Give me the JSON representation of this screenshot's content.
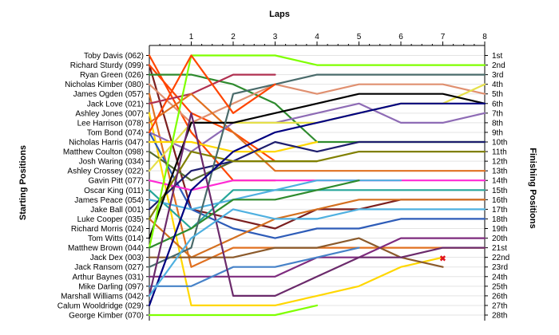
{
  "chart_data": {
    "type": "line",
    "title": "Laps",
    "ylabel_left": "Starting Positions",
    "ylabel_right": "Finishing Positions",
    "x": [
      0,
      1,
      2,
      3,
      4,
      5,
      6,
      7,
      8
    ],
    "x_tick_labels": [
      "1",
      "2",
      "3",
      "4",
      "5",
      "6",
      "7",
      "8"
    ],
    "y_range": [
      1,
      28
    ],
    "grid": true,
    "retired_marker": {
      "label": "✖",
      "lap": 7,
      "position": 22
    },
    "starting_labels": [
      "Toby Davis (062)",
      "Richard Sturdy (099)",
      "Ryan Green (026)",
      "Nicholas Kimber (080)",
      "James Ogden (057)",
      "Jack Love (021)",
      "Ashley Jones (007)",
      "Lee Harrison (078)",
      "Tom Bond (074)",
      "Nicholas Harris (047)",
      "Matthew Coulton (098)",
      "Josh Waring (034)",
      "Ashley Crossey (022)",
      "Gavin Pitt (077)",
      "Oscar King (011)",
      "James Peace (054)",
      "Jake Ball (001)",
      "Luke Cooper (035)",
      "Richard Morris (024)",
      "Tom Witts (014)",
      "Matthew Brown (044)",
      "Jack Dex (003)",
      "Jack Ransom (027)",
      "Arthur Baynes (031)",
      "Mike Darling (097)",
      "Marshall Williams (042)",
      "Calum Wooldridge (029)",
      "George Kimber (070)"
    ],
    "finishing_labels": [
      {
        "label": "1st",
        "position": 1
      },
      {
        "label": "2nd",
        "position": 2
      },
      {
        "label": "3rd",
        "position": 3
      },
      {
        "label": "4th",
        "position": 4
      },
      {
        "label": "5th",
        "position": 5
      },
      {
        "label": "6th",
        "position": 6
      },
      {
        "label": "7th",
        "position": 7
      },
      {
        "label": "8th",
        "position": 8
      },
      {
        "label": "9th",
        "position": 9
      },
      {
        "label": "10th",
        "position": 10
      },
      {
        "label": "11th",
        "position": 11
      },
      {
        "label": "12th",
        "position": 12
      },
      {
        "label": "13th",
        "position": 13
      },
      {
        "label": "14th",
        "position": 14
      },
      {
        "label": "15th",
        "position": 15
      },
      {
        "label": "16th",
        "position": 16
      },
      {
        "label": "17th",
        "position": 17
      },
      {
        "label": "18th",
        "position": 18
      },
      {
        "label": "19th",
        "position": 19
      },
      {
        "label": "20th",
        "position": 20
      },
      {
        "label": "21st",
        "position": 21
      },
      {
        "label": "22nd",
        "position": 22
      },
      {
        "label": "23rd",
        "position": 23
      },
      {
        "label": "24th",
        "position": 24
      },
      {
        "label": "25th",
        "position": 25
      },
      {
        "label": "26th",
        "position": 26
      },
      {
        "label": "27th",
        "position": 27
      },
      {
        "label": "28th",
        "position": 28
      }
    ],
    "series": [
      {
        "color": "#ff4500",
        "positions": [
          1,
          9,
          14,
          14
        ]
      },
      {
        "color": "#7b1f1f",
        "positions": [
          2,
          17,
          18,
          19,
          17,
          17,
          16,
          16,
          16
        ]
      },
      {
        "color": "#ff4500",
        "positions": [
          2,
          7,
          9,
          12
        ]
      },
      {
        "color": "#2e8b2e",
        "positions": [
          3,
          3,
          4,
          6,
          10,
          10,
          10,
          10,
          10
        ]
      },
      {
        "color": "#e09070",
        "positions": [
          4,
          8,
          6,
          4,
          5,
          4,
          4,
          4,
          5
        ]
      },
      {
        "color": "#e07020",
        "positions": [
          5,
          23,
          21,
          21,
          21,
          21,
          21,
          21,
          21
        ]
      },
      {
        "color": "#b03050",
        "positions": [
          6,
          5,
          3,
          3
        ]
      },
      {
        "color": "#ffd700",
        "positions": [
          7,
          27,
          27,
          27,
          26,
          25,
          23,
          22
        ]
      },
      {
        "color": "#e07020",
        "positions": [
          8,
          5,
          9,
          13,
          13,
          13,
          13,
          13,
          13
        ]
      },
      {
        "color": "#8e6bb5",
        "positions": [
          9,
          11,
          8,
          8,
          7,
          6,
          8,
          8,
          7
        ]
      },
      {
        "color": "#2e5cb8",
        "positions": [
          9,
          17,
          19,
          20,
          19,
          19,
          18,
          18,
          18
        ]
      },
      {
        "color": "#ffd700",
        "positions": [
          10,
          10,
          11,
          11,
          10
        ]
      },
      {
        "color": "#556b2f",
        "positions": [
          11,
          14,
          12,
          12,
          12
        ]
      },
      {
        "color": "#e5e04a",
        "positions": [
          13,
          8,
          8,
          8,
          8,
          7,
          6,
          6,
          4
        ]
      },
      {
        "color": "#ff2ad4",
        "positions": [
          14,
          15,
          14,
          14,
          14,
          14,
          14,
          14,
          14
        ]
      },
      {
        "color": "#26a69a",
        "positions": [
          15,
          19,
          15,
          15,
          15,
          15,
          15,
          15,
          15
        ]
      },
      {
        "color": "#4fb0e0",
        "positions": [
          16,
          17,
          16,
          15,
          14,
          14,
          14
        ]
      },
      {
        "color": "#1e1e6e",
        "positions": [
          17,
          13,
          12,
          10,
          11,
          10,
          10,
          10,
          10
        ]
      },
      {
        "color": "#d47020",
        "positions": [
          18,
          22,
          20,
          18,
          17,
          16,
          16,
          16,
          16
        ]
      },
      {
        "color": "#808000",
        "positions": [
          18,
          11,
          12,
          12,
          12,
          11,
          11,
          11,
          11
        ]
      },
      {
        "color": "#000000",
        "positions": [
          20,
          8,
          8,
          7,
          6,
          5,
          5,
          5,
          6
        ]
      },
      {
        "color": "#7fff00",
        "positions": [
          21,
          1,
          1,
          1,
          2,
          2,
          2,
          2,
          2
        ]
      },
      {
        "color": "#2e8b2e",
        "positions": [
          21,
          19,
          16,
          16,
          15,
          14
        ]
      },
      {
        "color": "#8b5a2b",
        "positions": [
          22,
          22,
          22,
          21,
          21,
          20,
          22,
          23
        ]
      },
      {
        "color": "#4a6b6b",
        "positions": [
          23,
          21,
          5,
          4,
          3,
          3,
          3,
          3,
          3
        ]
      },
      {
        "color": "#7e2b7e",
        "positions": [
          24,
          24,
          24,
          24,
          22,
          22,
          20,
          20,
          20
        ]
      },
      {
        "color": "#4682c8",
        "positions": [
          25,
          25,
          23,
          23,
          22,
          21
        ]
      },
      {
        "color": "#6b2a6b",
        "positions": [
          26,
          7,
          26,
          26,
          24,
          22,
          22,
          21,
          21
        ]
      },
      {
        "color": "#000080",
        "positions": [
          27,
          15,
          11,
          9,
          8,
          7,
          6,
          6,
          6
        ]
      },
      {
        "color": "#7fff00",
        "positions": [
          28,
          28,
          28,
          28,
          27
        ]
      },
      {
        "color": "#ff4500",
        "positions": [
          9,
          1,
          7,
          4
        ]
      },
      {
        "color": "#4fb0e0",
        "positions": [
          26,
          20,
          17,
          18,
          18,
          17,
          17,
          17,
          17
        ]
      }
    ]
  }
}
